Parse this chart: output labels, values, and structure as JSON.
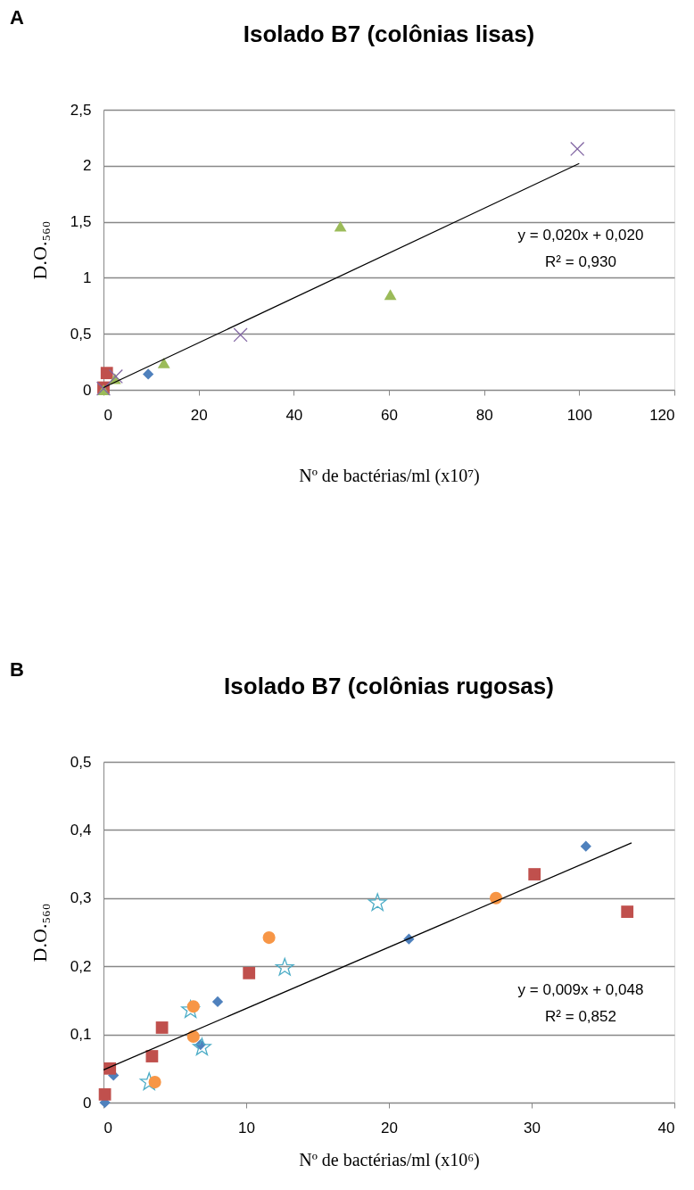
{
  "chart_data": [
    {
      "type": "scatter",
      "title": "Isolado B7 (colônias lisas)",
      "xlabel": "Nº de bactérias/ml (x10⁷)",
      "ylabel": "D.O.₅₆₀",
      "annotations": [
        "A",
        "y = 0,020x + 0,020",
        "R² = 0,930"
      ],
      "xlim": [
        0,
        120
      ],
      "xticks": [
        0,
        20,
        40,
        60,
        80,
        100,
        120
      ],
      "ylim": [
        0,
        2.5
      ],
      "yticks": [
        0,
        {
          "value": 0.5,
          "label": "0,5"
        },
        1,
        {
          "value": 1.5,
          "label": "1,5"
        },
        2,
        {
          "value": 2.5,
          "label": "2,5"
        }
      ],
      "grid": "y",
      "series": [
        {
          "type": "scatter",
          "marker": "diamond",
          "color": "#4f81bd",
          "x": [
            9.4
          ],
          "values": [
            0.14
          ]
        },
        {
          "type": "scatter",
          "marker": "square",
          "color": "#c0504d",
          "x": [
            0,
            0.7
          ],
          "values": [
            0.02,
            0.15
          ]
        },
        {
          "type": "scatter",
          "marker": "triangle",
          "color": "#9bbb59",
          "x": [
            0,
            2.4,
            12.7,
            49.8,
            60.3
          ],
          "values": [
            0,
            0.1,
            0.24,
            1.46,
            0.85
          ]
        },
        {
          "type": "scatter",
          "marker": "cross",
          "color": "#8064a2",
          "x": [
            0,
            2.6,
            28.8,
            99.6
          ],
          "values": [
            0.01,
            0.12,
            0.49,
            2.15
          ]
        },
        {
          "type": "line",
          "color": "#000000",
          "x": [
            0,
            100
          ],
          "values": [
            0.02,
            2.02
          ]
        }
      ]
    },
    {
      "type": "scatter",
      "title": "Isolado B7 (colônias rugosas)",
      "xlabel": "Nº de bactérias/ml (x10⁶)",
      "ylabel": "D.O.₅₆₀",
      "annotations": [
        "B",
        "y = 0,009x + 0,048",
        "R² = 0,852"
      ],
      "xlim": [
        0,
        40
      ],
      "xticks": [
        0,
        10,
        20,
        30,
        40
      ],
      "ylim": [
        0,
        0.5
      ],
      "yticks": [
        0,
        {
          "value": 0.1,
          "label": "0,1"
        },
        {
          "value": 0.2,
          "label": "0,2"
        },
        {
          "value": 0.3,
          "label": "0,3"
        },
        {
          "value": 0.4,
          "label": "0,4"
        },
        {
          "value": 0.5,
          "label": "0,5"
        }
      ],
      "grid": "y",
      "series": [
        {
          "type": "scatter",
          "marker": "diamond",
          "color": "#4f81bd",
          "x": [
            0.1,
            0.7,
            6.8,
            8.0,
            21.4,
            33.8
          ],
          "values": [
            0.0,
            0.04,
            0.085,
            0.148,
            0.24,
            0.376
          ]
        },
        {
          "type": "scatter",
          "marker": "square",
          "color": "#c0504d",
          "x": [
            0.1,
            0.45,
            3.4,
            4.1,
            10.2,
            30.2,
            36.7
          ],
          "values": [
            0.012,
            0.05,
            0.068,
            0.11,
            0.19,
            0.335,
            0.28
          ]
        },
        {
          "type": "scatter",
          "marker": "star",
          "color": "#4bacc6",
          "x": [
            3.2,
            6.1,
            6.9,
            12.7,
            19.2
          ],
          "values": [
            0.03,
            0.136,
            0.081,
            0.198,
            0.293
          ]
        },
        {
          "type": "scatter",
          "marker": "circle",
          "color": "#f79646",
          "x": [
            3.6,
            6.3,
            6.3,
            11.6,
            27.5
          ],
          "values": [
            0.03,
            0.141,
            0.097,
            0.242,
            0.3
          ]
        },
        {
          "type": "line",
          "color": "#000000",
          "x": [
            0,
            37
          ],
          "values": [
            0.048,
            0.381
          ]
        }
      ]
    }
  ]
}
